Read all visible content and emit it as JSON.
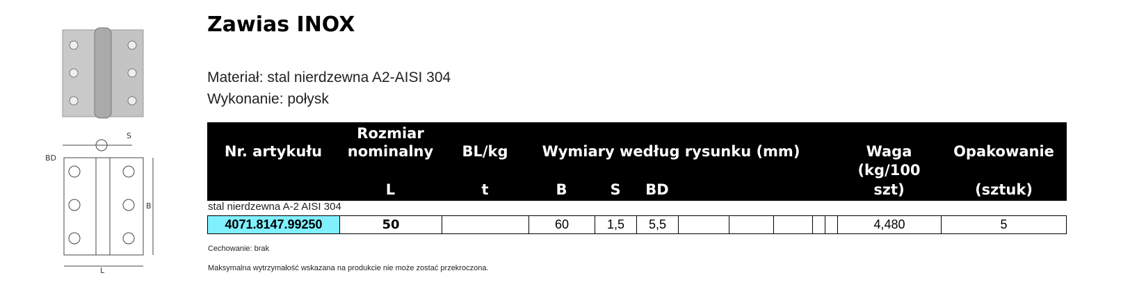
{
  "title": "Zawias INOX",
  "material": "Materiał: stal nierdzewna A2-AISI 304",
  "finish": "Wykonanie: połysk",
  "table": {
    "headers": {
      "article": "Nr. artykułu",
      "size1": "Rozmiar",
      "size2": "nominalny",
      "size_sym": "L",
      "bl": "BL/kg",
      "bl_sym": "t",
      "dims": "Wymiary według rysunku (mm)",
      "b": "B",
      "s": "S",
      "bd": "BD",
      "weight1": "Waga",
      "weight2": "(kg/100",
      "weight3": "szt)",
      "pack1": "Opakowanie",
      "pack2": "(sztuk)"
    },
    "group": "stal nierdzewna A-2 AISI 304",
    "row": {
      "article": "4071.8147.99250",
      "size": "50",
      "bl": "",
      "b": "60",
      "s": "1,5",
      "bd": "5,5",
      "weight": "4,480",
      "pack": "5"
    },
    "article_bg": "#80f0ff"
  },
  "drawing_labels": {
    "s": "S",
    "bd": "BD",
    "b": "B",
    "l": "L"
  },
  "notes": [
    "Cechowanie: brak",
    "Maksymalna wytrzymałość wskazana na produkcie nie może zostać przekroczona."
  ]
}
